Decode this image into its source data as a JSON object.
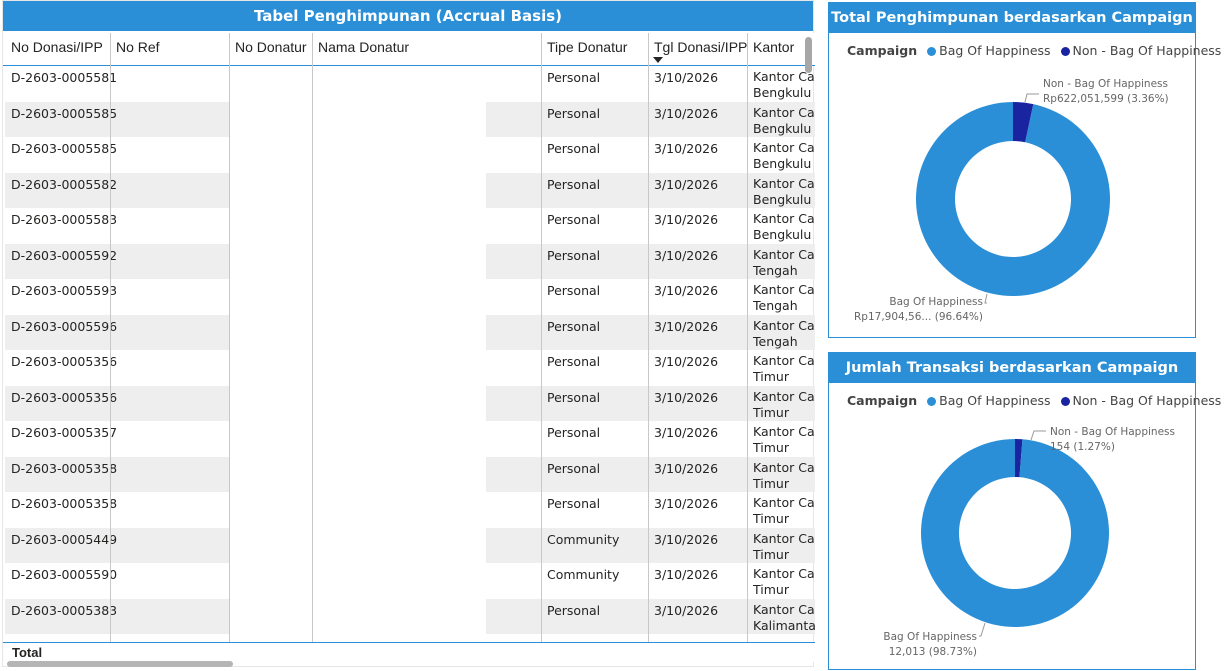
{
  "table": {
    "title": "Tabel Penghimpunan (Accrual Basis)",
    "columns": [
      "No Donasi/IPP",
      "No Ref",
      "No Donatur",
      "Nama Donatur",
      "Tipe Donatur",
      "Tgl Donasi/IPP",
      "Kantor"
    ],
    "rows": [
      {
        "no": "D-2603-0005581",
        "tipe": "Personal",
        "tgl": "3/10/2026",
        "k1": "Kantor Ca",
        "k2": "Bengkulu"
      },
      {
        "no": "D-2603-0005585",
        "tipe": "Personal",
        "tgl": "3/10/2026",
        "k1": "Kantor Ca",
        "k2": "Bengkulu"
      },
      {
        "no": "D-2603-0005585",
        "tipe": "Personal",
        "tgl": "3/10/2026",
        "k1": "Kantor Ca",
        "k2": "Bengkulu"
      },
      {
        "no": "D-2603-0005582",
        "tipe": "Personal",
        "tgl": "3/10/2026",
        "k1": "Kantor Ca",
        "k2": "Bengkulu"
      },
      {
        "no": "D-2603-0005583",
        "tipe": "Personal",
        "tgl": "3/10/2026",
        "k1": "Kantor Ca",
        "k2": "Bengkulu"
      },
      {
        "no": "D-2603-0005592",
        "tipe": "Personal",
        "tgl": "3/10/2026",
        "k1": "Kantor Ca",
        "k2": "Tengah"
      },
      {
        "no": "D-2603-0005593",
        "tipe": "Personal",
        "tgl": "3/10/2026",
        "k1": "Kantor Ca",
        "k2": "Tengah"
      },
      {
        "no": "D-2603-0005596",
        "tipe": "Personal",
        "tgl": "3/10/2026",
        "k1": "Kantor Ca",
        "k2": "Tengah"
      },
      {
        "no": "D-2603-0005356",
        "tipe": "Personal",
        "tgl": "3/10/2026",
        "k1": "Kantor Ca",
        "k2": "Timur"
      },
      {
        "no": "D-2603-0005356",
        "tipe": "Personal",
        "tgl": "3/10/2026",
        "k1": "Kantor Ca",
        "k2": "Timur"
      },
      {
        "no": "D-2603-0005357",
        "tipe": "Personal",
        "tgl": "3/10/2026",
        "k1": "Kantor Ca",
        "k2": "Timur"
      },
      {
        "no": "D-2603-0005358",
        "tipe": "Personal",
        "tgl": "3/10/2026",
        "k1": "Kantor Ca",
        "k2": "Timur"
      },
      {
        "no": "D-2603-0005358",
        "tipe": "Personal",
        "tgl": "3/10/2026",
        "k1": "Kantor Ca",
        "k2": "Timur"
      },
      {
        "no": "D-2603-0005449",
        "tipe": "Community",
        "tgl": "3/10/2026",
        "k1": "Kantor Ca",
        "k2": "Timur"
      },
      {
        "no": "D-2603-0005590",
        "tipe": "Community",
        "tgl": "3/10/2026",
        "k1": "Kantor Ca",
        "k2": "Timur"
      },
      {
        "no": "D-2603-0005383",
        "tipe": "Personal",
        "tgl": "3/10/2026",
        "k1": "Kantor Ca",
        "k2": "Kalimanta"
      }
    ],
    "total_label": "Total"
  },
  "charts": {
    "c1": {
      "title": "Total Penghimpunan berdasarkan Campaign",
      "legend_title": "Campaign",
      "legend": [
        "Bag Of Happiness",
        "Non - Bag Of Happiness"
      ],
      "big_label_name": "Bag Of Happiness",
      "big_label_value": "Rp17,904,56... (96.64%)",
      "small_label_name": "Non - Bag Of Happiness",
      "small_label_value": "Rp622,051,599 (3.36%)"
    },
    "c2": {
      "title": "Jumlah Transaksi berdasarkan Campaign",
      "legend_title": "Campaign",
      "legend": [
        "Bag Of Happiness",
        "Non - Bag Of Happiness"
      ],
      "big_label_name": "Bag Of Happiness",
      "big_label_value": "12,013 (98.73%)",
      "small_label_name": "Non - Bag Of Happiness",
      "small_label_value": "154 (1.27%)"
    }
  },
  "colors": {
    "accent": "#2a8fd6",
    "slice_main": "#2a8fd6",
    "slice_minor": "#1a23a0",
    "row_shade": "#eeeeee"
  },
  "chart_data": [
    {
      "type": "pie",
      "title": "Total Penghimpunan berdasarkan Campaign",
      "categories": [
        "Bag Of Happiness",
        "Non - Bag Of Happiness"
      ],
      "values": [
        96.64,
        3.36
      ]
    },
    {
      "type": "pie",
      "title": "Jumlah Transaksi berdasarkan Campaign",
      "categories": [
        "Bag Of Happiness",
        "Non - Bag Of Happiness"
      ],
      "values": [
        12013,
        154
      ]
    }
  ]
}
